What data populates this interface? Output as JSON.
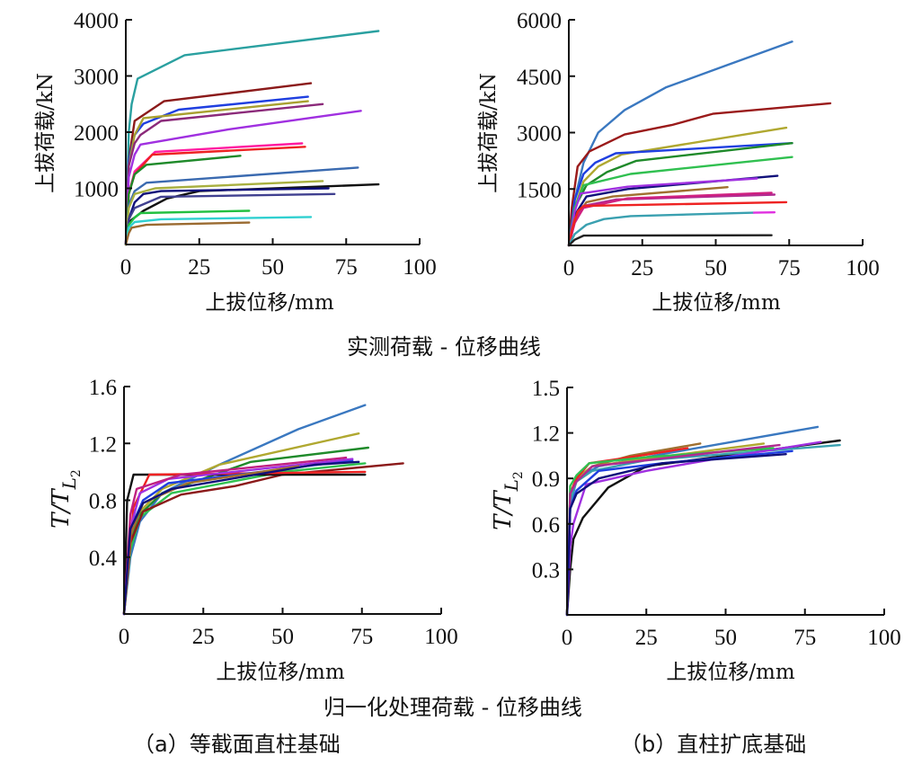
{
  "captions": {
    "measured_group": "实测荷载 - 位移曲线",
    "normalized_group": "归一化处理荷载 - 位移曲线",
    "panel_a": "（a）等截面直柱基础",
    "panel_b": "（b）直柱扩底基础"
  },
  "chart_data": [
    {
      "id": "a-measured",
      "type": "line",
      "title": "实测荷载 - 位移曲线 (a) 等截面直柱基础",
      "xlabel": "上拔位移/mm",
      "ylabel": "上拔荷载/kN",
      "xlim": [
        0,
        100
      ],
      "ylim": [
        0,
        4000
      ],
      "xticks": [
        0,
        25,
        50,
        75,
        100
      ],
      "yticks": [
        1000,
        2000,
        3000,
        4000
      ],
      "xtick_labels": [
        "0",
        "25",
        "50",
        "75",
        "100"
      ],
      "ytick_labels": [
        "1000",
        "2000",
        "3000",
        "4000"
      ],
      "grid": false,
      "legend": "none",
      "series": [
        {
          "color": "#2aa0a0",
          "x": [
            0,
            1,
            2,
            4,
            20,
            86
          ],
          "y": [
            0,
            2000,
            2500,
            2950,
            3370,
            3800
          ]
        },
        {
          "color": "#8b1a1a",
          "x": [
            0,
            1,
            3,
            13,
            63
          ],
          "y": [
            0,
            1500,
            2200,
            2550,
            2870
          ]
        },
        {
          "color": "#1f3fe0",
          "x": [
            0,
            1,
            3,
            6,
            18,
            62
          ],
          "y": [
            0,
            1500,
            1950,
            2150,
            2400,
            2630
          ]
        },
        {
          "color": "#a8a030",
          "x": [
            0,
            1,
            3,
            6,
            62
          ],
          "y": [
            0,
            1400,
            1950,
            2250,
            2550
          ]
        },
        {
          "color": "#8b2a7a",
          "x": [
            0,
            1,
            3,
            5,
            12,
            67
          ],
          "y": [
            0,
            1400,
            1800,
            1950,
            2200,
            2500
          ]
        },
        {
          "color": "#a030e0",
          "x": [
            0,
            1,
            3,
            5,
            35,
            80
          ],
          "y": [
            0,
            1200,
            1600,
            1780,
            2050,
            2380
          ]
        },
        {
          "color": "#ff1aa0",
          "x": [
            0,
            1,
            3,
            10,
            60
          ],
          "y": [
            0,
            900,
            1300,
            1650,
            1800
          ]
        },
        {
          "color": "#ee2222",
          "x": [
            0,
            1,
            3,
            9,
            61
          ],
          "y": [
            0,
            900,
            1250,
            1600,
            1740
          ]
        },
        {
          "color": "#1f8a2a",
          "x": [
            0,
            1,
            3,
            7,
            39
          ],
          "y": [
            0,
            900,
            1250,
            1420,
            1580
          ]
        },
        {
          "color": "#3a6ab0",
          "x": [
            0,
            1,
            3,
            7,
            79
          ],
          "y": [
            0,
            700,
            950,
            1100,
            1370
          ]
        },
        {
          "color": "#a8b040",
          "x": [
            0,
            1,
            3,
            10,
            67
          ],
          "y": [
            0,
            650,
            900,
            1000,
            1130
          ]
        },
        {
          "color": "#111111",
          "x": [
            0,
            1,
            6,
            14,
            25,
            86
          ],
          "y": [
            0,
            400,
            600,
            820,
            950,
            1070
          ]
        },
        {
          "color": "#10107a",
          "x": [
            0,
            1,
            3,
            6,
            12,
            69
          ],
          "y": [
            0,
            450,
            750,
            900,
            950,
            1000
          ]
        },
        {
          "color": "#404090",
          "x": [
            0,
            1,
            3,
            12,
            71
          ],
          "y": [
            0,
            450,
            650,
            850,
            900
          ]
        },
        {
          "color": "#22c040",
          "x": [
            0,
            1,
            3,
            5,
            42
          ],
          "y": [
            0,
            350,
            480,
            560,
            600
          ]
        },
        {
          "color": "#30d0d0",
          "x": [
            0,
            1,
            3,
            12,
            63
          ],
          "y": [
            0,
            300,
            400,
            450,
            490
          ]
        },
        {
          "color": "#9a6a30",
          "x": [
            0,
            1,
            2,
            7,
            42
          ],
          "y": [
            0,
            200,
            300,
            350,
            390
          ]
        }
      ]
    },
    {
      "id": "b-measured",
      "type": "line",
      "title": "实测荷载 - 位移曲线 (b) 直柱扩底基础",
      "xlabel": "上拔位移/mm",
      "ylabel": "上拔荷载/kN",
      "xlim": [
        0,
        100
      ],
      "ylim": [
        0,
        6000
      ],
      "xticks": [
        0,
        25,
        50,
        75,
        100
      ],
      "yticks": [
        1500,
        3000,
        4500,
        6000
      ],
      "xtick_labels": [
        "0",
        "25",
        "50",
        "75",
        "100"
      ],
      "ytick_labels": [
        "1500",
        "3000",
        "4500",
        "6000"
      ],
      "grid": false,
      "legend": "none",
      "series": [
        {
          "color": "#3a78c0",
          "x": [
            0,
            2,
            5,
            10,
            19,
            33,
            54,
            76
          ],
          "y": [
            0,
            1200,
            2200,
            3000,
            3600,
            4200,
            4800,
            5420
          ]
        },
        {
          "color": "#9a1a1a",
          "x": [
            0,
            1,
            3,
            7,
            19,
            35,
            49,
            89
          ],
          "y": [
            0,
            1000,
            2100,
            2500,
            2950,
            3200,
            3500,
            3780
          ]
        },
        {
          "color": "#b0a830",
          "x": [
            0,
            2,
            5,
            10,
            18,
            74
          ],
          "y": [
            0,
            1000,
            1700,
            2100,
            2420,
            3130
          ]
        },
        {
          "color": "#1f3fe0",
          "x": [
            0,
            2,
            5,
            9,
            16,
            76
          ],
          "y": [
            0,
            1200,
            1900,
            2200,
            2450,
            2720
          ]
        },
        {
          "color": "#1f8a2a",
          "x": [
            0,
            2,
            6,
            13,
            23,
            76
          ],
          "y": [
            0,
            1000,
            1600,
            1950,
            2250,
            2720
          ]
        },
        {
          "color": "#30c050",
          "x": [
            0,
            2,
            5,
            21,
            76
          ],
          "y": [
            0,
            1000,
            1600,
            1900,
            2350
          ]
        },
        {
          "color": "#10107a",
          "x": [
            0,
            2,
            6,
            20,
            71
          ],
          "y": [
            0,
            800,
            1300,
            1500,
            1850
          ]
        },
        {
          "color": "#a030e0",
          "x": [
            0,
            2,
            4,
            20,
            64
          ],
          "y": [
            0,
            900,
            1380,
            1560,
            1780
          ]
        },
        {
          "color": "#a07030",
          "x": [
            0,
            2,
            6,
            15,
            54
          ],
          "y": [
            0,
            700,
            1150,
            1300,
            1550
          ]
        },
        {
          "color": "#b02a90",
          "x": [
            0,
            2,
            5,
            16,
            70
          ],
          "y": [
            0,
            600,
            1050,
            1220,
            1350
          ]
        },
        {
          "color": "#d02080",
          "x": [
            0,
            2,
            5,
            20,
            69
          ],
          "y": [
            0,
            600,
            1000,
            1250,
            1400
          ]
        },
        {
          "color": "#ee2222",
          "x": [
            0,
            1,
            3,
            5,
            74
          ],
          "y": [
            0,
            400,
            900,
            1050,
            1150
          ]
        },
        {
          "color": "#3aa0b0",
          "x": [
            0,
            2,
            6,
            12,
            21,
            63
          ],
          "y": [
            0,
            300,
            550,
            700,
            780,
            870
          ]
        },
        {
          "color": "#e030e0",
          "x": [
            63,
            70
          ],
          "y": [
            870,
            880
          ]
        },
        {
          "color": "#222222",
          "x": [
            0,
            2,
            5,
            69
          ],
          "y": [
            0,
            150,
            260,
            270
          ]
        }
      ]
    },
    {
      "id": "a-normalized",
      "type": "line",
      "title": "归一化处理荷载 - 位移曲线 (a) 等截面直柱基础",
      "xlabel": "上拔位移/mm",
      "ylabel": "T/T_L2",
      "xlim": [
        0,
        100
      ],
      "ylim": [
        0,
        1.6
      ],
      "xticks": [
        0,
        25,
        50,
        75,
        100
      ],
      "yticks": [
        0.4,
        0.8,
        1.2,
        1.6
      ],
      "xtick_labels": [
        "0",
        "25",
        "50",
        "75",
        "100"
      ],
      "ytick_labels": [
        "0.4",
        "0.8",
        "1.2",
        "1.6"
      ],
      "grid": false,
      "legend": "none",
      "series": [
        {
          "color": "#3a78c0",
          "x": [
            0,
            2,
            5,
            12,
            30,
            55,
            76
          ],
          "y": [
            0,
            0.4,
            0.65,
            0.85,
            1.05,
            1.3,
            1.47
          ]
        },
        {
          "color": "#b0a830",
          "x": [
            0,
            2,
            5,
            12,
            30,
            74
          ],
          "y": [
            0,
            0.5,
            0.72,
            0.88,
            1.05,
            1.27
          ]
        },
        {
          "color": "#1f8a2a",
          "x": [
            0,
            2,
            5,
            12,
            40,
            77
          ],
          "y": [
            0,
            0.5,
            0.7,
            0.85,
            1.07,
            1.17
          ]
        },
        {
          "color": "#30c050",
          "x": [
            0,
            2,
            5,
            15,
            50,
            76
          ],
          "y": [
            0,
            0.45,
            0.68,
            0.85,
            1.0,
            1.06
          ]
        },
        {
          "color": "#8b1a1a",
          "x": [
            0,
            2,
            6,
            18,
            35,
            50,
            88
          ],
          "y": [
            0,
            0.5,
            0.72,
            0.84,
            0.9,
            0.98,
            1.06
          ]
        },
        {
          "color": "#111111",
          "x": [
            0,
            1,
            3,
            76
          ],
          "y": [
            0,
            0.8,
            0.98,
            0.98
          ]
        },
        {
          "color": "#ee2222",
          "x": [
            0,
            3,
            8,
            76
          ],
          "y": [
            0,
            0.75,
            0.98,
            1.0
          ]
        },
        {
          "color": "#1f3fe0",
          "x": [
            0,
            2,
            6,
            14,
            72
          ],
          "y": [
            0,
            0.6,
            0.8,
            0.92,
            1.08
          ]
        },
        {
          "color": "#a030e0",
          "x": [
            0,
            2,
            5,
            14,
            72
          ],
          "y": [
            0,
            0.6,
            0.85,
            0.95,
            1.09
          ]
        },
        {
          "color": "#c02080",
          "x": [
            0,
            2,
            4,
            18,
            70
          ],
          "y": [
            0,
            0.7,
            0.88,
            0.98,
            1.1
          ]
        },
        {
          "color": "#a07030",
          "x": [
            0,
            2,
            6,
            20,
            55
          ],
          "y": [
            0,
            0.55,
            0.78,
            0.92,
            1.04
          ]
        },
        {
          "color": "#10107a",
          "x": [
            0,
            2,
            6,
            15,
            60,
            74
          ],
          "y": [
            0,
            0.6,
            0.78,
            0.88,
            1.05,
            1.07
          ]
        }
      ]
    },
    {
      "id": "b-normalized",
      "type": "line",
      "title": "归一化处理荷载 - 位移曲线 (b) 直柱扩底基础",
      "xlabel": "上拔位移/mm",
      "ylabel": "T/T_L2",
      "xlim": [
        0,
        100
      ],
      "ylim": [
        0,
        1.5
      ],
      "xticks": [
        0,
        25,
        50,
        75,
        100
      ],
      "yticks": [
        0.3,
        0.6,
        0.9,
        1.2,
        1.5
      ],
      "xtick_labels": [
        "0",
        "25",
        "50",
        "75",
        "100"
      ],
      "ytick_labels": [
        "0.3",
        "0.6",
        "0.9",
        "1.2",
        "1.5"
      ],
      "grid": false,
      "legend": "none",
      "series": [
        {
          "color": "#3a78c0",
          "x": [
            0,
            1,
            3,
            10,
            30,
            79
          ],
          "y": [
            0,
            0.7,
            0.9,
            0.98,
            1.06,
            1.24
          ]
        },
        {
          "color": "#111111",
          "x": [
            0,
            1,
            2,
            5,
            13,
            25,
            50,
            86
          ],
          "y": [
            0,
            0.3,
            0.5,
            0.64,
            0.84,
            0.98,
            1.05,
            1.15
          ]
        },
        {
          "color": "#3aa0b0",
          "x": [
            0,
            1,
            3,
            8,
            25,
            86
          ],
          "y": [
            0,
            0.75,
            0.88,
            0.95,
            1.02,
            1.12
          ]
        },
        {
          "color": "#a030e0",
          "x": [
            0,
            1,
            2,
            6,
            25,
            50,
            80
          ],
          "y": [
            0,
            0.45,
            0.6,
            0.86,
            0.95,
            1.04,
            1.14
          ]
        },
        {
          "color": "#a07030",
          "x": [
            0,
            1,
            3,
            8,
            20,
            42
          ],
          "y": [
            0,
            0.8,
            0.9,
            0.98,
            1.05,
            1.13
          ]
        },
        {
          "color": "#b0a830",
          "x": [
            0,
            1,
            3,
            8,
            25,
            62
          ],
          "y": [
            0,
            0.8,
            0.9,
            0.98,
            1.03,
            1.13
          ]
        },
        {
          "color": "#ee2222",
          "x": [
            0,
            1,
            3,
            7,
            20,
            38
          ],
          "y": [
            0,
            0.8,
            0.9,
            1.0,
            1.04,
            1.1
          ]
        },
        {
          "color": "#30c050",
          "x": [
            0,
            1,
            3,
            7,
            25,
            65
          ],
          "y": [
            0,
            0.85,
            0.92,
            1.0,
            1.04,
            1.1
          ]
        },
        {
          "color": "#b02a90",
          "x": [
            0,
            1,
            3,
            8,
            25,
            67
          ],
          "y": [
            0,
            0.8,
            0.88,
            0.98,
            1.02,
            1.12
          ]
        },
        {
          "color": "#1f3fe0",
          "x": [
            0,
            1,
            3,
            10,
            30,
            71
          ],
          "y": [
            0,
            0.7,
            0.82,
            0.95,
            1.0,
            1.08
          ]
        },
        {
          "color": "#10107a",
          "x": [
            0,
            1,
            3,
            10,
            30,
            69
          ],
          "y": [
            0,
            0.7,
            0.8,
            0.9,
            1.0,
            1.06
          ]
        }
      ]
    }
  ]
}
